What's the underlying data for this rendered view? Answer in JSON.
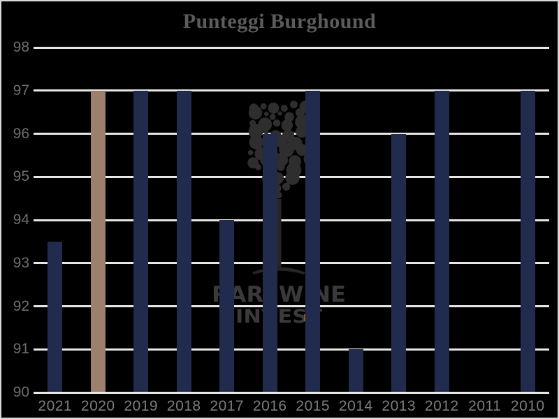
{
  "title": "Punteggi Burghound",
  "watermark": {
    "line1": "RAREWINE",
    "line2": "INVEST"
  },
  "chart_data": {
    "type": "bar",
    "title": "Punteggi Burghound",
    "categories": [
      "2021",
      "2020",
      "2019",
      "2018",
      "2017",
      "2016",
      "2015",
      "2014",
      "2013",
      "2012",
      "2011",
      "2010"
    ],
    "values": [
      93.5,
      97,
      97,
      97,
      94,
      96,
      97,
      91,
      96,
      97,
      null,
      97
    ],
    "yticks": [
      90,
      91,
      92,
      93,
      94,
      95,
      96,
      97,
      98
    ],
    "ylim": [
      90,
      98
    ],
    "grid": true,
    "legend": false,
    "xlabel": "",
    "ylabel": "",
    "highlight_category": "2020",
    "colors": {
      "bar": "#212b4d",
      "highlight_bar": "#9d7f6d",
      "background": "#000000",
      "border": "#d9d9d9",
      "gridline": "#e9e7e3",
      "title_text": "#5c5c5c",
      "y_tick_text": "#6e6e6e",
      "x_tick_text": "#7d7d7d",
      "watermark_dots": "#2e2e2e",
      "watermark_text": "#3a3a3a",
      "watermark_accent": "#8d5520"
    }
  }
}
